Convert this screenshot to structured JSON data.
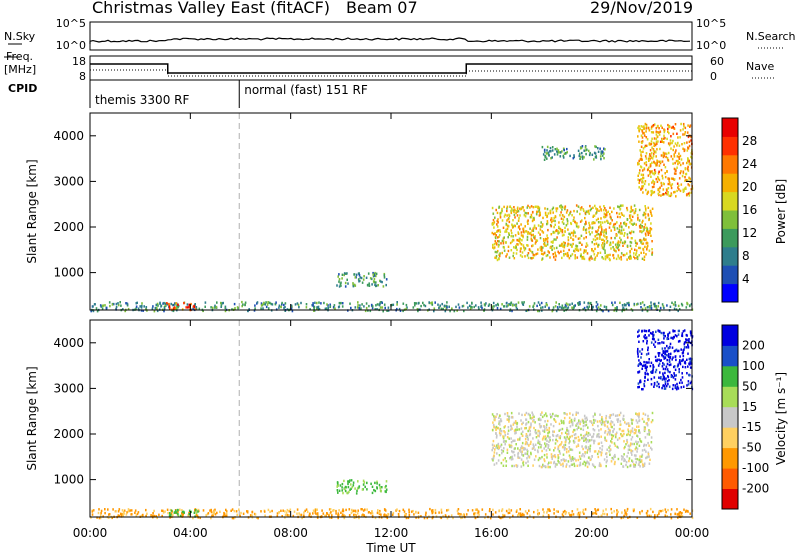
{
  "header": {
    "title": "Christmas Valley East (fitACF)",
    "beam": "Beam 07",
    "date": "29/Nov/2019"
  },
  "top_panels": {
    "nsky_label": "N.Sky",
    "nsearch_label": "N.Search",
    "noise_ticks": [
      "10^5",
      "10^0"
    ],
    "freq_label_1": "Freq.",
    "freq_label_2": "[MHz]",
    "freq_ticks": [
      "18",
      "8"
    ],
    "nave_ticks": [
      "60",
      "0"
    ],
    "nave_label": "Nave",
    "cpid_label": "CPID",
    "cpid_segments": [
      "themis 3300 RF",
      "normal (fast) 151 RF"
    ]
  },
  "colors": {
    "power_scale": [
      "#0000ff",
      "#1e4fb4",
      "#2e7d8c",
      "#3c9a5c",
      "#7fbf3a",
      "#d8d820",
      "#f5b000",
      "#ff7800",
      "#ff3000",
      "#e80000"
    ],
    "velocity_scale": [
      "#e00000",
      "#ff5a00",
      "#ff9800",
      "#ffd060",
      "#c8c8c8",
      "#a8dd58",
      "#3cb83c",
      "#1a50c8",
      "#0000e0"
    ],
    "axes": "#000000",
    "cpid_divider": "#b0b0b0"
  },
  "chart_data": [
    {
      "type": "heatmap",
      "panel": "power",
      "xlabel": "",
      "ylabel": "Slant Range [km]",
      "x_ticks": [
        "00:00",
        "04:00",
        "08:00",
        "12:00",
        "16:00",
        "20:00",
        "00:00"
      ],
      "y_ticks": [
        "1000",
        "2000",
        "3000",
        "4000"
      ],
      "ylim": [
        180,
        4500
      ],
      "colorbar_label": "Power [dB]",
      "colorbar_ticks": [
        "4",
        "8",
        "12",
        "16",
        "20",
        "24",
        "28"
      ],
      "colorbar_range": [
        0,
        32
      ],
      "features": [
        {
          "t_hours": [
            0.0,
            24.0
          ],
          "range_km": [
            180,
            380
          ],
          "power_db": 10
        },
        {
          "t_hours": [
            3.0,
            4.3
          ],
          "range_km": [
            200,
            360
          ],
          "power_db": 26
        },
        {
          "t_hours": [
            9.8,
            11.8
          ],
          "range_km": [
            720,
            1020
          ],
          "power_db": 10
        },
        {
          "t_hours": [
            16.0,
            22.4
          ],
          "range_km": [
            1300,
            2500
          ],
          "power_db": 19
        },
        {
          "t_hours": [
            18.0,
            20.5
          ],
          "range_km": [
            3500,
            3800
          ],
          "power_db": 10
        },
        {
          "t_hours": [
            21.8,
            24.0
          ],
          "range_km": [
            2700,
            4300
          ],
          "power_db": 21
        }
      ]
    },
    {
      "type": "heatmap",
      "panel": "velocity",
      "xlabel": "Time UT",
      "ylabel": "Slant Range [km]",
      "x_ticks": [
        "00:00",
        "04:00",
        "08:00",
        "12:00",
        "16:00",
        "20:00",
        "00:00"
      ],
      "y_ticks": [
        "1000",
        "2000",
        "3000",
        "4000"
      ],
      "ylim": [
        180,
        4500
      ],
      "colorbar_label": "Velocity [m s⁻¹]",
      "colorbar_ticks": [
        "-200",
        "-100",
        "-50",
        "-15",
        "15",
        "50",
        "100",
        "200"
      ],
      "colorbar_range": [
        -250,
        250
      ],
      "features": [
        {
          "t_hours": [
            0.0,
            24.0
          ],
          "range_km": [
            180,
            380
          ],
          "velocity_ms": -60
        },
        {
          "t_hours": [
            3.0,
            4.3
          ],
          "range_km": [
            200,
            360
          ],
          "velocity_ms": 70
        },
        {
          "t_hours": [
            9.8,
            11.8
          ],
          "range_km": [
            720,
            1020
          ],
          "velocity_ms": 60
        },
        {
          "t_hours": [
            16.0,
            22.4
          ],
          "range_km": [
            1300,
            2500
          ],
          "velocity_ms": 0
        },
        {
          "t_hours": [
            21.8,
            24.0
          ],
          "range_km": [
            3000,
            4300
          ],
          "velocity_ms": 220
        }
      ]
    }
  ]
}
